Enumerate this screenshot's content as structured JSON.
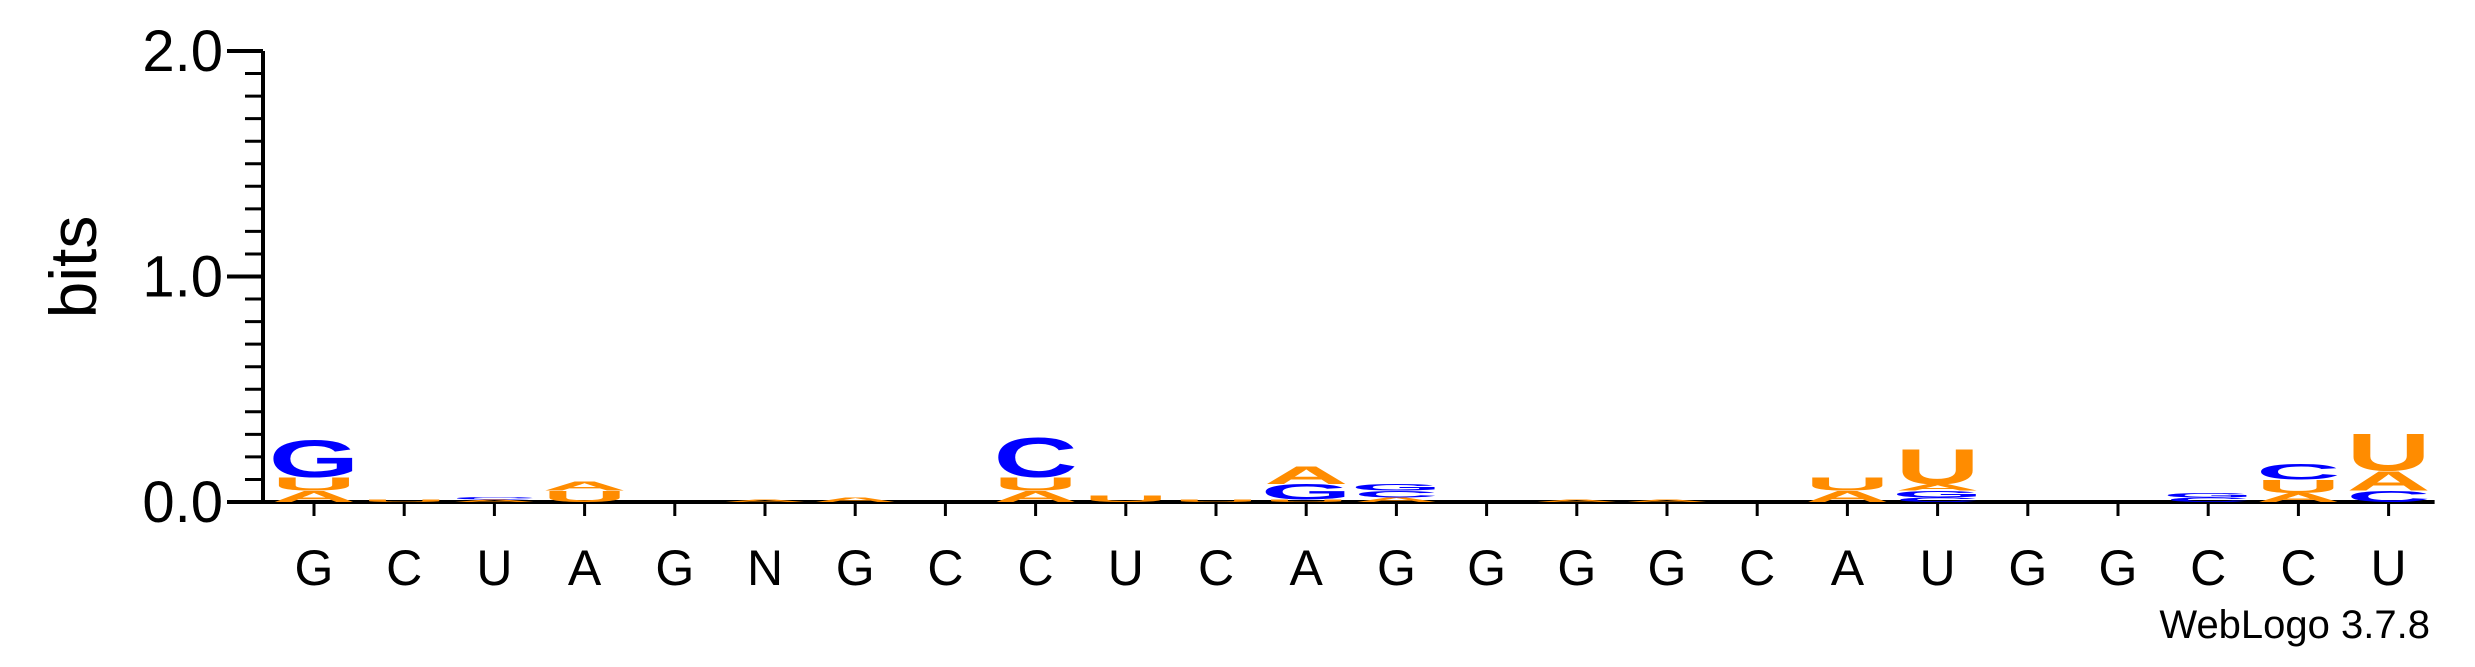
{
  "chart_data": {
    "type": "sequence-logo",
    "ylabel": "bits",
    "ylim": [
      0,
      2.0
    ],
    "yticks": [
      "0.0",
      "1.0",
      "2.0"
    ],
    "credit": "WebLogo 3.7.8",
    "colors": {
      "A": "#ff8c00",
      "U": "#ff8c00",
      "G": "#0000ff",
      "C": "#0000ff"
    },
    "positions": [
      {
        "label": "G",
        "stack": [
          {
            "letter": "A",
            "height": 0.05
          },
          {
            "letter": "U",
            "height": 0.06
          },
          {
            "letter": "G",
            "height": 0.17
          }
        ]
      },
      {
        "label": "C",
        "stack": [
          {
            "letter": "U",
            "height": 0.01
          }
        ]
      },
      {
        "label": "U",
        "stack": [
          {
            "letter": "A",
            "height": 0.01
          },
          {
            "letter": "C",
            "height": 0.01
          }
        ]
      },
      {
        "label": "A",
        "stack": [
          {
            "letter": "U",
            "height": 0.05
          },
          {
            "letter": "A",
            "height": 0.04
          }
        ]
      },
      {
        "label": "G",
        "stack": []
      },
      {
        "label": "N",
        "stack": [
          {
            "letter": "A",
            "height": 0.01
          }
        ]
      },
      {
        "label": "G",
        "stack": [
          {
            "letter": "A",
            "height": 0.02
          }
        ]
      },
      {
        "label": "C",
        "stack": []
      },
      {
        "label": "C",
        "stack": [
          {
            "letter": "A",
            "height": 0.05
          },
          {
            "letter": "U",
            "height": 0.06
          },
          {
            "letter": "C",
            "height": 0.18
          }
        ]
      },
      {
        "label": "U",
        "stack": [
          {
            "letter": "U",
            "height": 0.03
          }
        ]
      },
      {
        "label": "C",
        "stack": [
          {
            "letter": "U",
            "height": 0.01
          }
        ]
      },
      {
        "label": "A",
        "stack": [
          {
            "letter": "U",
            "height": 0.01
          },
          {
            "letter": "G",
            "height": 0.07
          },
          {
            "letter": "A",
            "height": 0.08
          }
        ]
      },
      {
        "label": "G",
        "stack": [
          {
            "letter": "A",
            "height": 0.02
          },
          {
            "letter": "C",
            "height": 0.03
          },
          {
            "letter": "G",
            "height": 0.03
          }
        ]
      },
      {
        "label": "G",
        "stack": []
      },
      {
        "label": "G",
        "stack": [
          {
            "letter": "A",
            "height": 0.01
          }
        ]
      },
      {
        "label": "G",
        "stack": [
          {
            "letter": "A",
            "height": 0.01
          }
        ]
      },
      {
        "label": "C",
        "stack": []
      },
      {
        "label": "A",
        "stack": [
          {
            "letter": "A",
            "height": 0.05
          },
          {
            "letter": "U",
            "height": 0.06
          }
        ]
      },
      {
        "label": "U",
        "stack": [
          {
            "letter": "C",
            "height": 0.02
          },
          {
            "letter": "G",
            "height": 0.03
          },
          {
            "letter": "A",
            "height": 0.03
          },
          {
            "letter": "U",
            "height": 0.16
          }
        ]
      },
      {
        "label": "G",
        "stack": []
      },
      {
        "label": "G",
        "stack": []
      },
      {
        "label": "C",
        "stack": [
          {
            "letter": "C",
            "height": 0.02
          },
          {
            "letter": "G",
            "height": 0.02
          }
        ]
      },
      {
        "label": "C",
        "stack": [
          {
            "letter": "A",
            "height": 0.04
          },
          {
            "letter": "U",
            "height": 0.06
          },
          {
            "letter": "C",
            "height": 0.07
          }
        ]
      },
      {
        "label": "U",
        "stack": [
          {
            "letter": "C",
            "height": 0.05
          },
          {
            "letter": "A",
            "height": 0.09
          },
          {
            "letter": "U",
            "height": 0.17
          }
        ]
      }
    ]
  }
}
